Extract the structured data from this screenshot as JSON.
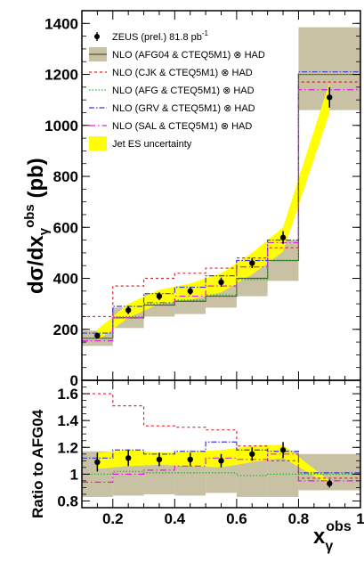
{
  "chart_data": [
    {
      "type": "histogram",
      "panel": "top",
      "ylabel": "dσ/dx",
      "ylabel_sub": "γ",
      "ylabel_sup": "obs",
      "ylabel_unit": " (pb)",
      "xlim": [
        0.1,
        1.0
      ],
      "ylim": [
        0,
        1450
      ],
      "xticks": [
        0.2,
        0.4,
        0.6,
        0.8,
        1.0
      ],
      "xtick_labels": [
        "0.2",
        "0.4",
        "0.6",
        "0.8",
        "1"
      ],
      "yticks": [
        0,
        200,
        400,
        600,
        800,
        1000,
        1200,
        1400
      ],
      "ytick_labels": [
        "0",
        "200",
        "400",
        "600",
        "800",
        "1000",
        "1200",
        "1400"
      ],
      "bin_edges": [
        0.1,
        0.2,
        0.3,
        0.4,
        0.5,
        0.6,
        0.7,
        0.8,
        1.0
      ],
      "data_points": {
        "name": "ZEUS (prel.) 81.8 pb",
        "name_sup": "-1",
        "x": [
          0.15,
          0.25,
          0.35,
          0.45,
          0.55,
          0.65,
          0.75,
          0.9
        ],
        "y": [
          175,
          275,
          330,
          350,
          385,
          460,
          560,
          1110
        ],
        "err": [
          12,
          15,
          15,
          15,
          18,
          20,
          25,
          40
        ]
      },
      "afg04_band": {
        "name": "NLO (AFG04 & CTEQ5M1) ⊗ HAD",
        "central": [
          165,
          245,
          295,
          310,
          330,
          400,
          470,
          1200
        ],
        "low": [
          135,
          205,
          250,
          260,
          285,
          330,
          390,
          1060
        ],
        "high": [
          195,
          285,
          340,
          355,
          375,
          460,
          550,
          1385
        ]
      },
      "series": [
        {
          "name": "NLO (CJK & CTEQ5M1) ⊗ HAD",
          "color": "#e8202a",
          "dash": "3,3",
          "values": [
            250,
            370,
            400,
            420,
            440,
            480,
            520,
            1170
          ]
        },
        {
          "name": "NLO (AFG & CTEQ5M1) ⊗ HAD",
          "color": "#1fbe2a",
          "dash": "1.5,2",
          "values": [
            165,
            250,
            300,
            315,
            335,
            395,
            470,
            1200
          ]
        },
        {
          "name": "NLO (GRV & CTEQ5M1) ⊗ HAD",
          "color": "#3a3ad8",
          "dash": "6,2,1.5,2",
          "values": [
            185,
            290,
            340,
            365,
            410,
            470,
            550,
            1210
          ]
        },
        {
          "name": "NLO (SAL & CTEQ5M1) ⊗ HAD",
          "color": "#e020e0",
          "dash": "7,3,1.5,3",
          "values": [
            155,
            245,
            305,
            330,
            370,
            445,
            540,
            1140
          ]
        }
      ],
      "jet_es": {
        "name": "Jet ES uncertainty",
        "color": "#ffff00",
        "x": [
          0.15,
          0.25,
          0.35,
          0.45,
          0.55,
          0.65,
          0.75,
          0.9
        ],
        "low": [
          155,
          245,
          300,
          315,
          345,
          415,
          505,
          1050
        ],
        "high": [
          200,
          300,
          355,
          380,
          420,
          500,
          600,
          1170
        ]
      }
    },
    {
      "type": "histogram",
      "panel": "bottom",
      "ylabel": "Ratio to AFG04",
      "xlabel": "x",
      "xlabel_sub": "γ",
      "xlabel_sup": "obs",
      "xlim": [
        0.1,
        1.0
      ],
      "ylim": [
        0.75,
        1.7
      ],
      "yticks": [
        0.8,
        1.0,
        1.2,
        1.4,
        1.6
      ],
      "ytick_labels": [
        "0.8",
        "1",
        "1.2",
        "1.4",
        "1.6"
      ],
      "bin_edges": [
        0.1,
        0.2,
        0.3,
        0.4,
        0.5,
        0.6,
        0.7,
        0.8,
        1.0
      ],
      "data_points": {
        "x": [
          0.15,
          0.25,
          0.35,
          0.45,
          0.55,
          0.65,
          0.75,
          0.9
        ],
        "y": [
          1.09,
          1.12,
          1.11,
          1.11,
          1.1,
          1.15,
          1.18,
          0.93
        ],
        "err": [
          0.07,
          0.06,
          0.05,
          0.05,
          0.05,
          0.05,
          0.06,
          0.03
        ]
      },
      "afg04_band": {
        "low": [
          0.83,
          0.84,
          0.85,
          0.84,
          0.86,
          0.83,
          0.83,
          0.88
        ],
        "high": [
          1.17,
          1.16,
          1.15,
          1.15,
          1.14,
          1.15,
          1.17,
          1.15
        ]
      },
      "series": [
        {
          "name": "CJK",
          "color": "#e8202a",
          "dash": "3,3",
          "values": [
            1.6,
            1.51,
            1.36,
            1.35,
            1.33,
            1.21,
            1.1,
            0.97
          ]
        },
        {
          "name": "AFG",
          "color": "#1fbe2a",
          "dash": "1.5,2",
          "values": [
            1.0,
            1.02,
            1.01,
            1.01,
            1.01,
            0.99,
            1.0,
            1.0
          ]
        },
        {
          "name": "GRV",
          "color": "#3a3ad8",
          "dash": "6,2,1.5,2",
          "values": [
            1.12,
            1.18,
            1.15,
            1.17,
            1.24,
            1.18,
            1.17,
            1.01
          ]
        },
        {
          "name": "SAL",
          "color": "#e020e0",
          "dash": "7,3,1.5,3",
          "values": [
            0.94,
            1.0,
            1.03,
            1.06,
            1.12,
            1.11,
            1.15,
            0.95
          ]
        }
      ],
      "jet_es": {
        "x": [
          0.15,
          0.25,
          0.35,
          0.45,
          0.55,
          0.65,
          0.75,
          0.9
        ],
        "low": [
          1.04,
          1.06,
          1.07,
          1.06,
          1.05,
          1.09,
          1.12,
          0.92
        ],
        "high": [
          1.16,
          1.18,
          1.16,
          1.17,
          1.18,
          1.21,
          1.22,
          0.95
        ]
      }
    }
  ],
  "colors": {
    "afg04_band": "#c8c1a4",
    "afg04_line": "#505a3a",
    "frame": "#000000"
  }
}
